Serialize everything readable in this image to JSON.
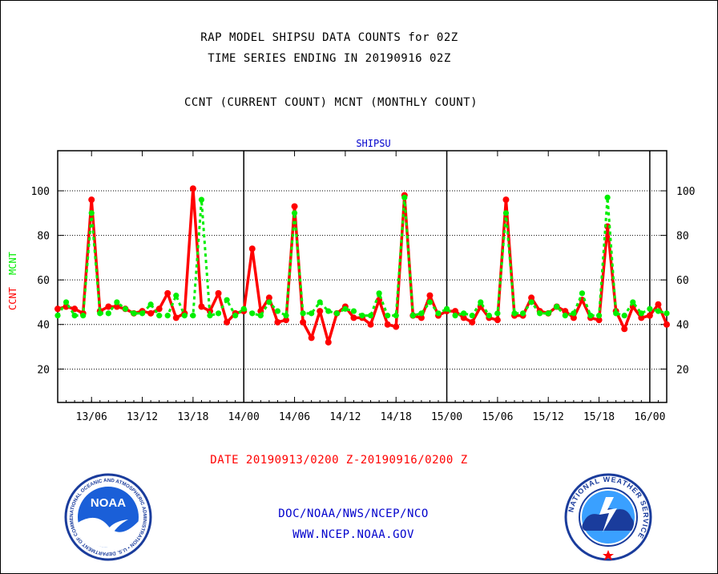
{
  "header": {
    "title_line1": "RAP MODEL SHIPSU DATA COUNTS for 02Z",
    "title_line2": "TIME SERIES ENDING IN 20190916 02Z",
    "title_line3": "CCNT (CURRENT COUNT) MCNT (MONTHLY COUNT)"
  },
  "footer": {
    "date_range": "DATE 20190913/0200 Z-20190916/0200 Z",
    "agency": "DOC/NOAA/NWS/NCEP/NCO",
    "website": "WWW.NCEP.NOAA.GOV"
  },
  "logos": {
    "noaa_text": "NOAA",
    "noaa_ring": "NATIONAL OCEANIC AND ATMOSPHERIC ADMINISTRATION • U.S. DEPARTMENT OF COMMERCE •",
    "nws_ring": "NATIONAL WEATHER SERVICE"
  },
  "colors": {
    "ccnt": "#ff0000",
    "mcnt": "#00ee00",
    "plot_title": "#0000cc",
    "footer_blue": "#0000cc",
    "date_red": "#ff0000"
  },
  "chart_data": {
    "type": "line",
    "title": "SHIPSU",
    "ylabel_ccnt": "CCNT",
    "ylabel_mcnt": "MCNT",
    "x_tick_labels": [
      "13/06",
      "13/12",
      "13/18",
      "14/00",
      "14/06",
      "14/12",
      "14/18",
      "15/00",
      "15/06",
      "15/12",
      "15/18",
      "16/00"
    ],
    "y_ticks": [
      20,
      40,
      60,
      80,
      100
    ],
    "ylim": [
      5,
      118
    ],
    "x_hours_range": [
      2,
      74
    ],
    "day_dividers_hours": [
      24,
      48,
      72
    ],
    "grid": "horizontal-dotted",
    "series": [
      {
        "name": "CCNT",
        "hours": [
          2,
          3,
          4,
          5,
          6,
          7,
          8,
          9,
          10,
          11,
          12,
          13,
          14,
          15,
          16,
          17,
          18,
          19,
          20,
          21,
          22,
          23,
          24,
          25,
          26,
          27,
          28,
          29,
          30,
          31,
          32,
          33,
          34,
          35,
          36,
          37,
          38,
          39,
          40,
          41,
          42,
          43,
          44,
          45,
          46,
          47,
          48,
          49,
          50,
          51,
          52,
          53,
          54,
          55,
          56,
          57,
          58,
          59,
          60,
          61,
          62,
          63,
          64,
          65,
          66,
          67,
          68,
          69,
          70,
          71,
          72,
          73,
          74
        ],
        "values": [
          47,
          48,
          47,
          45,
          96,
          46,
          48,
          48,
          47,
          45,
          46,
          45,
          47,
          54,
          43,
          45,
          101,
          48,
          46,
          54,
          41,
          45,
          46,
          74,
          46,
          52,
          41,
          42,
          93,
          41,
          34,
          46,
          32,
          45,
          48,
          43,
          43,
          40,
          51,
          40,
          39,
          98,
          44,
          43,
          53,
          44,
          46,
          46,
          43,
          41,
          48,
          43,
          42,
          96,
          44,
          44,
          52,
          46,
          45,
          48,
          46,
          43,
          51,
          43,
          42,
          84,
          46,
          38,
          48,
          43,
          44,
          49,
          40
        ]
      },
      {
        "name": "MCNT",
        "hours": [
          2,
          3,
          4,
          5,
          6,
          7,
          8,
          9,
          10,
          11,
          12,
          13,
          14,
          15,
          16,
          17,
          18,
          19,
          20,
          21,
          22,
          23,
          24,
          25,
          26,
          27,
          28,
          29,
          30,
          31,
          32,
          33,
          34,
          35,
          36,
          37,
          38,
          39,
          40,
          41,
          42,
          43,
          44,
          45,
          46,
          47,
          48,
          49,
          50,
          51,
          52,
          53,
          54,
          55,
          56,
          57,
          58,
          59,
          60,
          61,
          62,
          63,
          64,
          65,
          66,
          67,
          68,
          69,
          70,
          71,
          72,
          73,
          74
        ],
        "values": [
          44,
          50,
          44,
          44,
          90,
          45,
          45,
          50,
          47,
          45,
          45,
          49,
          44,
          44,
          53,
          44,
          44,
          96,
          44,
          45,
          51,
          44,
          47,
          45,
          44,
          50,
          46,
          44,
          90,
          45,
          45,
          50,
          46,
          45,
          47,
          46,
          44,
          44,
          54,
          44,
          44,
          97,
          44,
          45,
          50,
          45,
          47,
          44,
          45,
          44,
          50,
          44,
          45,
          90,
          45,
          45,
          50,
          45,
          45,
          48,
          44,
          45,
          54,
          44,
          44,
          97,
          45,
          44,
          50,
          45,
          47,
          46,
          45
        ]
      }
    ]
  }
}
